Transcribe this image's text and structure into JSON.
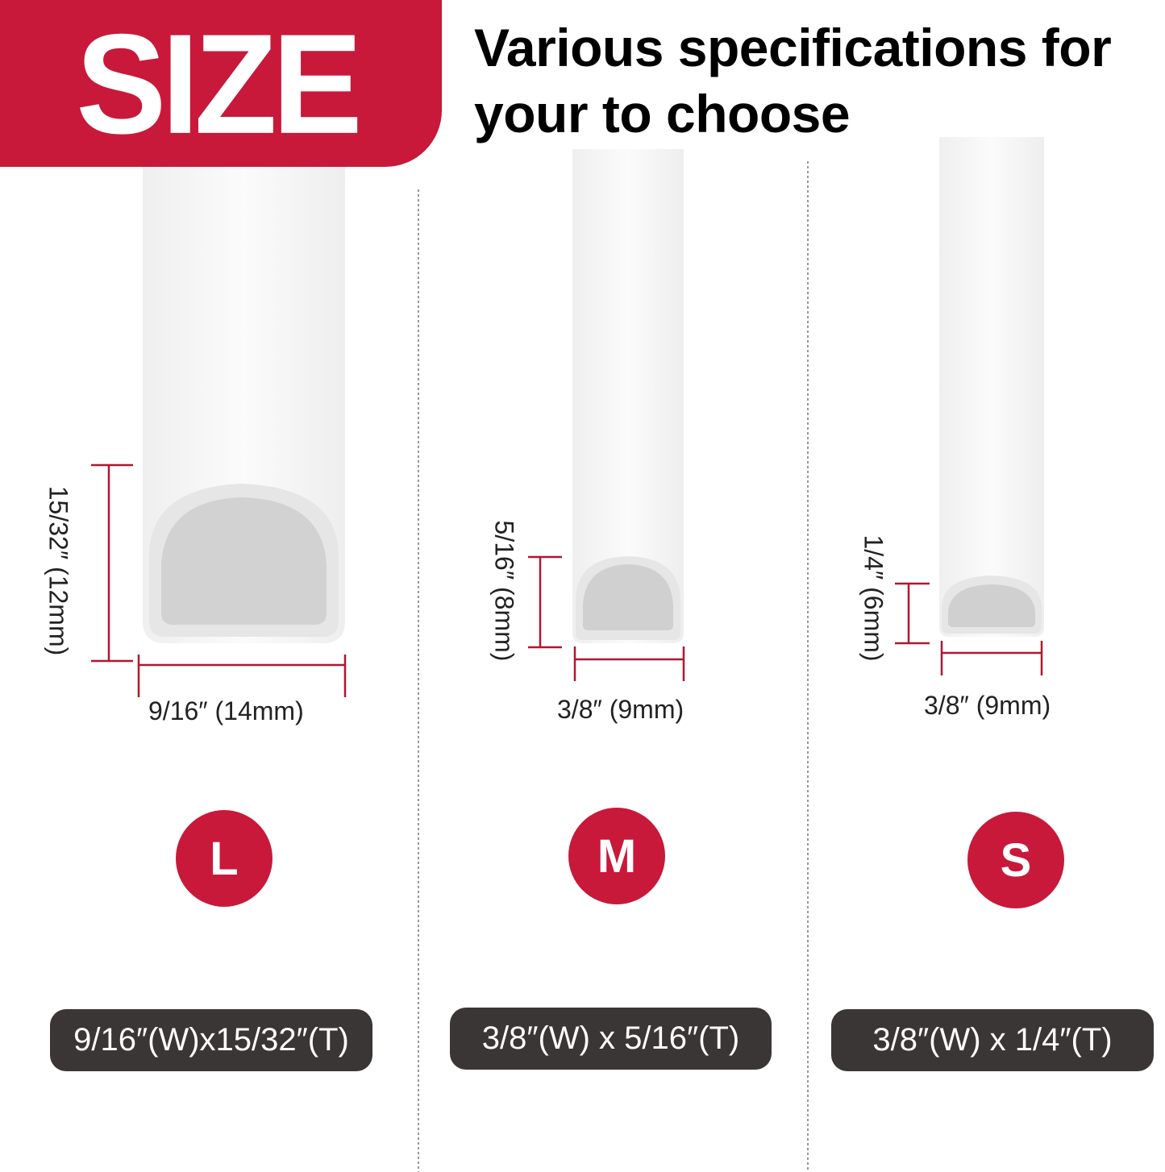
{
  "header": {
    "badge_text": "SIZE",
    "headline_line1": "Various specifications for",
    "headline_line2": "your to choose"
  },
  "colors": {
    "accent": "#c8193a",
    "pill": "#3a3635"
  },
  "sizes": [
    {
      "letter": "L",
      "height_label": "15/32″ (12mm)",
      "width_label": "9/16″ (14mm)",
      "spec": "9/16″(W)x15/32″(T)"
    },
    {
      "letter": "M",
      "height_label": "5/16″ (8mm)",
      "width_label": "3/8″ (9mm)",
      "spec": "3/8″(W) x 5/16″(T)"
    },
    {
      "letter": "S",
      "height_label": "1/4″ (6mm)",
      "width_label": "3/8″ (9mm)",
      "spec": "3/8″(W) x 1/4″(T)"
    }
  ]
}
